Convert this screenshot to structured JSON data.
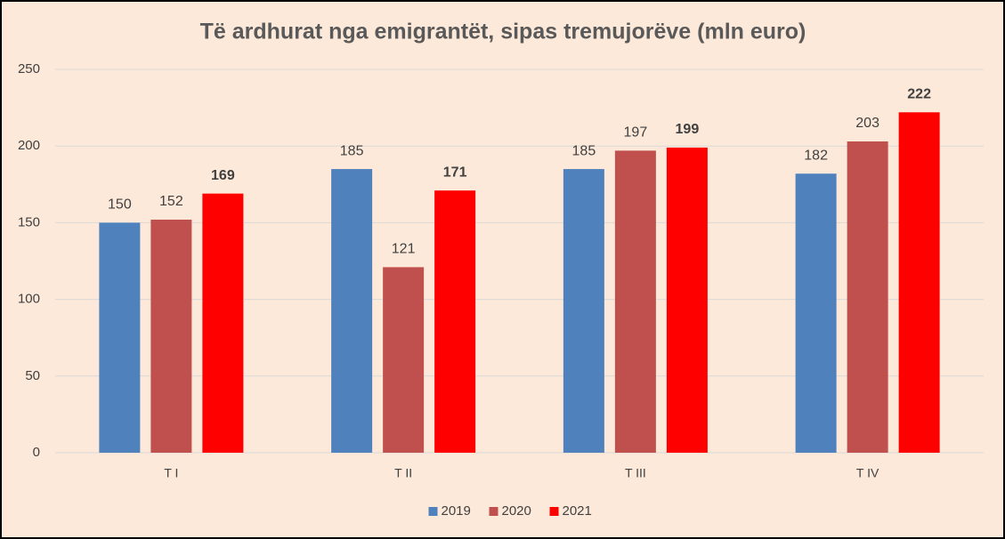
{
  "chart_data": {
    "type": "bar",
    "title": "Të ardhurat nga emigrantët, sipas tremujorëve (mln euro)",
    "categories": [
      "T I",
      "T II",
      "T III",
      "T IV"
    ],
    "series": [
      {
        "name": "2019",
        "color": "#4f81bd",
        "values": [
          150,
          185,
          185,
          182
        ]
      },
      {
        "name": "2020",
        "color": "#c0504d",
        "values": [
          152,
          121,
          197,
          203
        ]
      },
      {
        "name": "2021",
        "color": "#ff0000",
        "values": [
          169,
          171,
          199,
          222
        ],
        "label_weight": "bold"
      }
    ],
    "ylim": [
      0,
      250
    ],
    "yticks": [
      0,
      50,
      100,
      150,
      200,
      250
    ],
    "grid": true,
    "legend": "bottom"
  }
}
